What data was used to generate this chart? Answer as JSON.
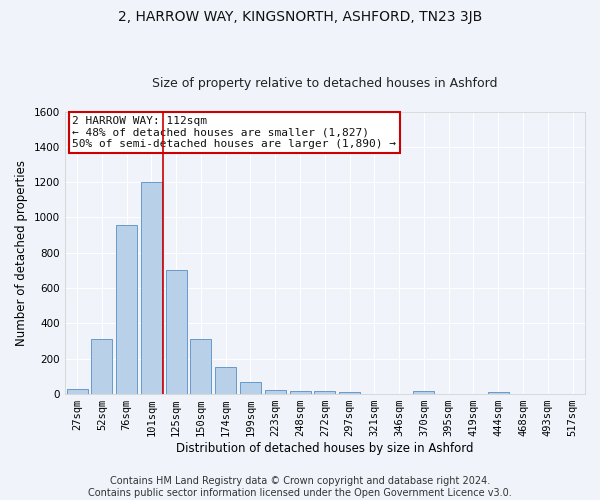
{
  "title": "2, HARROW WAY, KINGSNORTH, ASHFORD, TN23 3JB",
  "subtitle": "Size of property relative to detached houses in Ashford",
  "xlabel": "Distribution of detached houses by size in Ashford",
  "ylabel": "Number of detached properties",
  "categories": [
    "27sqm",
    "52sqm",
    "76sqm",
    "101sqm",
    "125sqm",
    "150sqm",
    "174sqm",
    "199sqm",
    "223sqm",
    "248sqm",
    "272sqm",
    "297sqm",
    "321sqm",
    "346sqm",
    "370sqm",
    "395sqm",
    "419sqm",
    "444sqm",
    "468sqm",
    "493sqm",
    "517sqm"
  ],
  "values": [
    30,
    310,
    960,
    1200,
    700,
    310,
    155,
    70,
    25,
    15,
    15,
    10,
    0,
    0,
    15,
    0,
    0,
    10,
    0,
    0,
    0
  ],
  "bar_color": "#b8d0e8",
  "bar_edge_color": "#6699cc",
  "vline_color": "#cc0000",
  "vline_x_index": 3.45,
  "annotation_line1": "2 HARROW WAY: 112sqm",
  "annotation_line2": "← 48% of detached houses are smaller (1,827)",
  "annotation_line3": "50% of semi-detached houses are larger (1,890) →",
  "annotation_box_color": "#ffffff",
  "annotation_box_edge_color": "#cc0000",
  "ylim": [
    0,
    1600
  ],
  "yticks": [
    0,
    200,
    400,
    600,
    800,
    1000,
    1200,
    1400,
    1600
  ],
  "footer_line1": "Contains HM Land Registry data © Crown copyright and database right 2024.",
  "footer_line2": "Contains public sector information licensed under the Open Government Licence v3.0.",
  "fig_bg": "#f0f4fa",
  "grid_color": "#ffffff",
  "title_fontsize": 10,
  "subtitle_fontsize": 9,
  "axis_label_fontsize": 8.5,
  "tick_fontsize": 7.5,
  "annotation_fontsize": 8,
  "footer_fontsize": 7
}
